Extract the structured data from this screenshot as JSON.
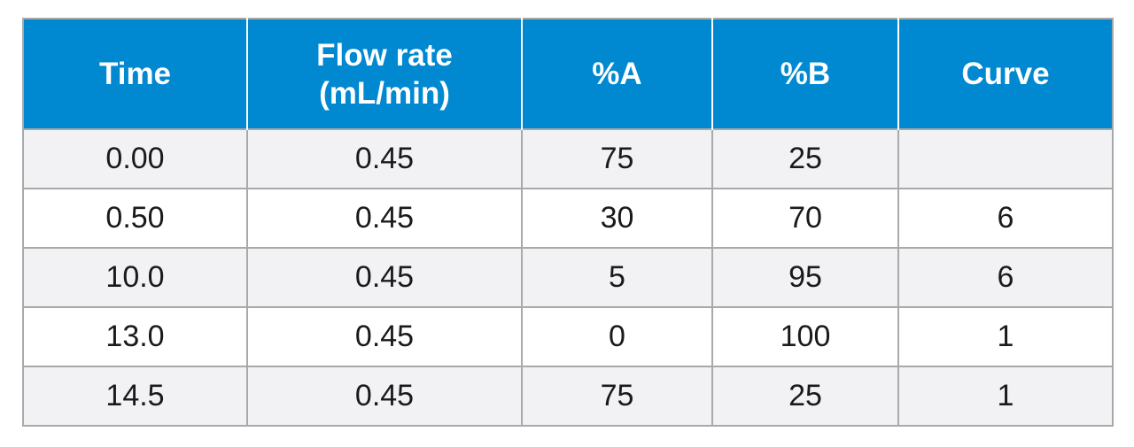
{
  "table": {
    "header": {
      "time": "Time",
      "flow_rate_line1": "Flow rate",
      "flow_rate_line2": "(mL/min)",
      "percent_a": "%A",
      "percent_b": "%B",
      "curve": "Curve"
    },
    "rows": [
      {
        "time": "0.00",
        "flow_rate": "0.45",
        "percent_a": "75",
        "percent_b": "25",
        "curve": ""
      },
      {
        "time": "0.50",
        "flow_rate": "0.45",
        "percent_a": "30",
        "percent_b": "70",
        "curve": "6"
      },
      {
        "time": "10.0",
        "flow_rate": "0.45",
        "percent_a": "5",
        "percent_b": "95",
        "curve": "6"
      },
      {
        "time": "13.0",
        "flow_rate": "0.45",
        "percent_a": "0",
        "percent_b": "100",
        "curve": "1"
      },
      {
        "time": "14.5",
        "flow_rate": "0.45",
        "percent_a": "75",
        "percent_b": "25",
        "curve": "1"
      }
    ],
    "colors": {
      "header_background": "#0088d1",
      "header_text": "#ffffff",
      "row_alt_background": "#f2f2f5",
      "border": "#a9a9a9"
    }
  }
}
